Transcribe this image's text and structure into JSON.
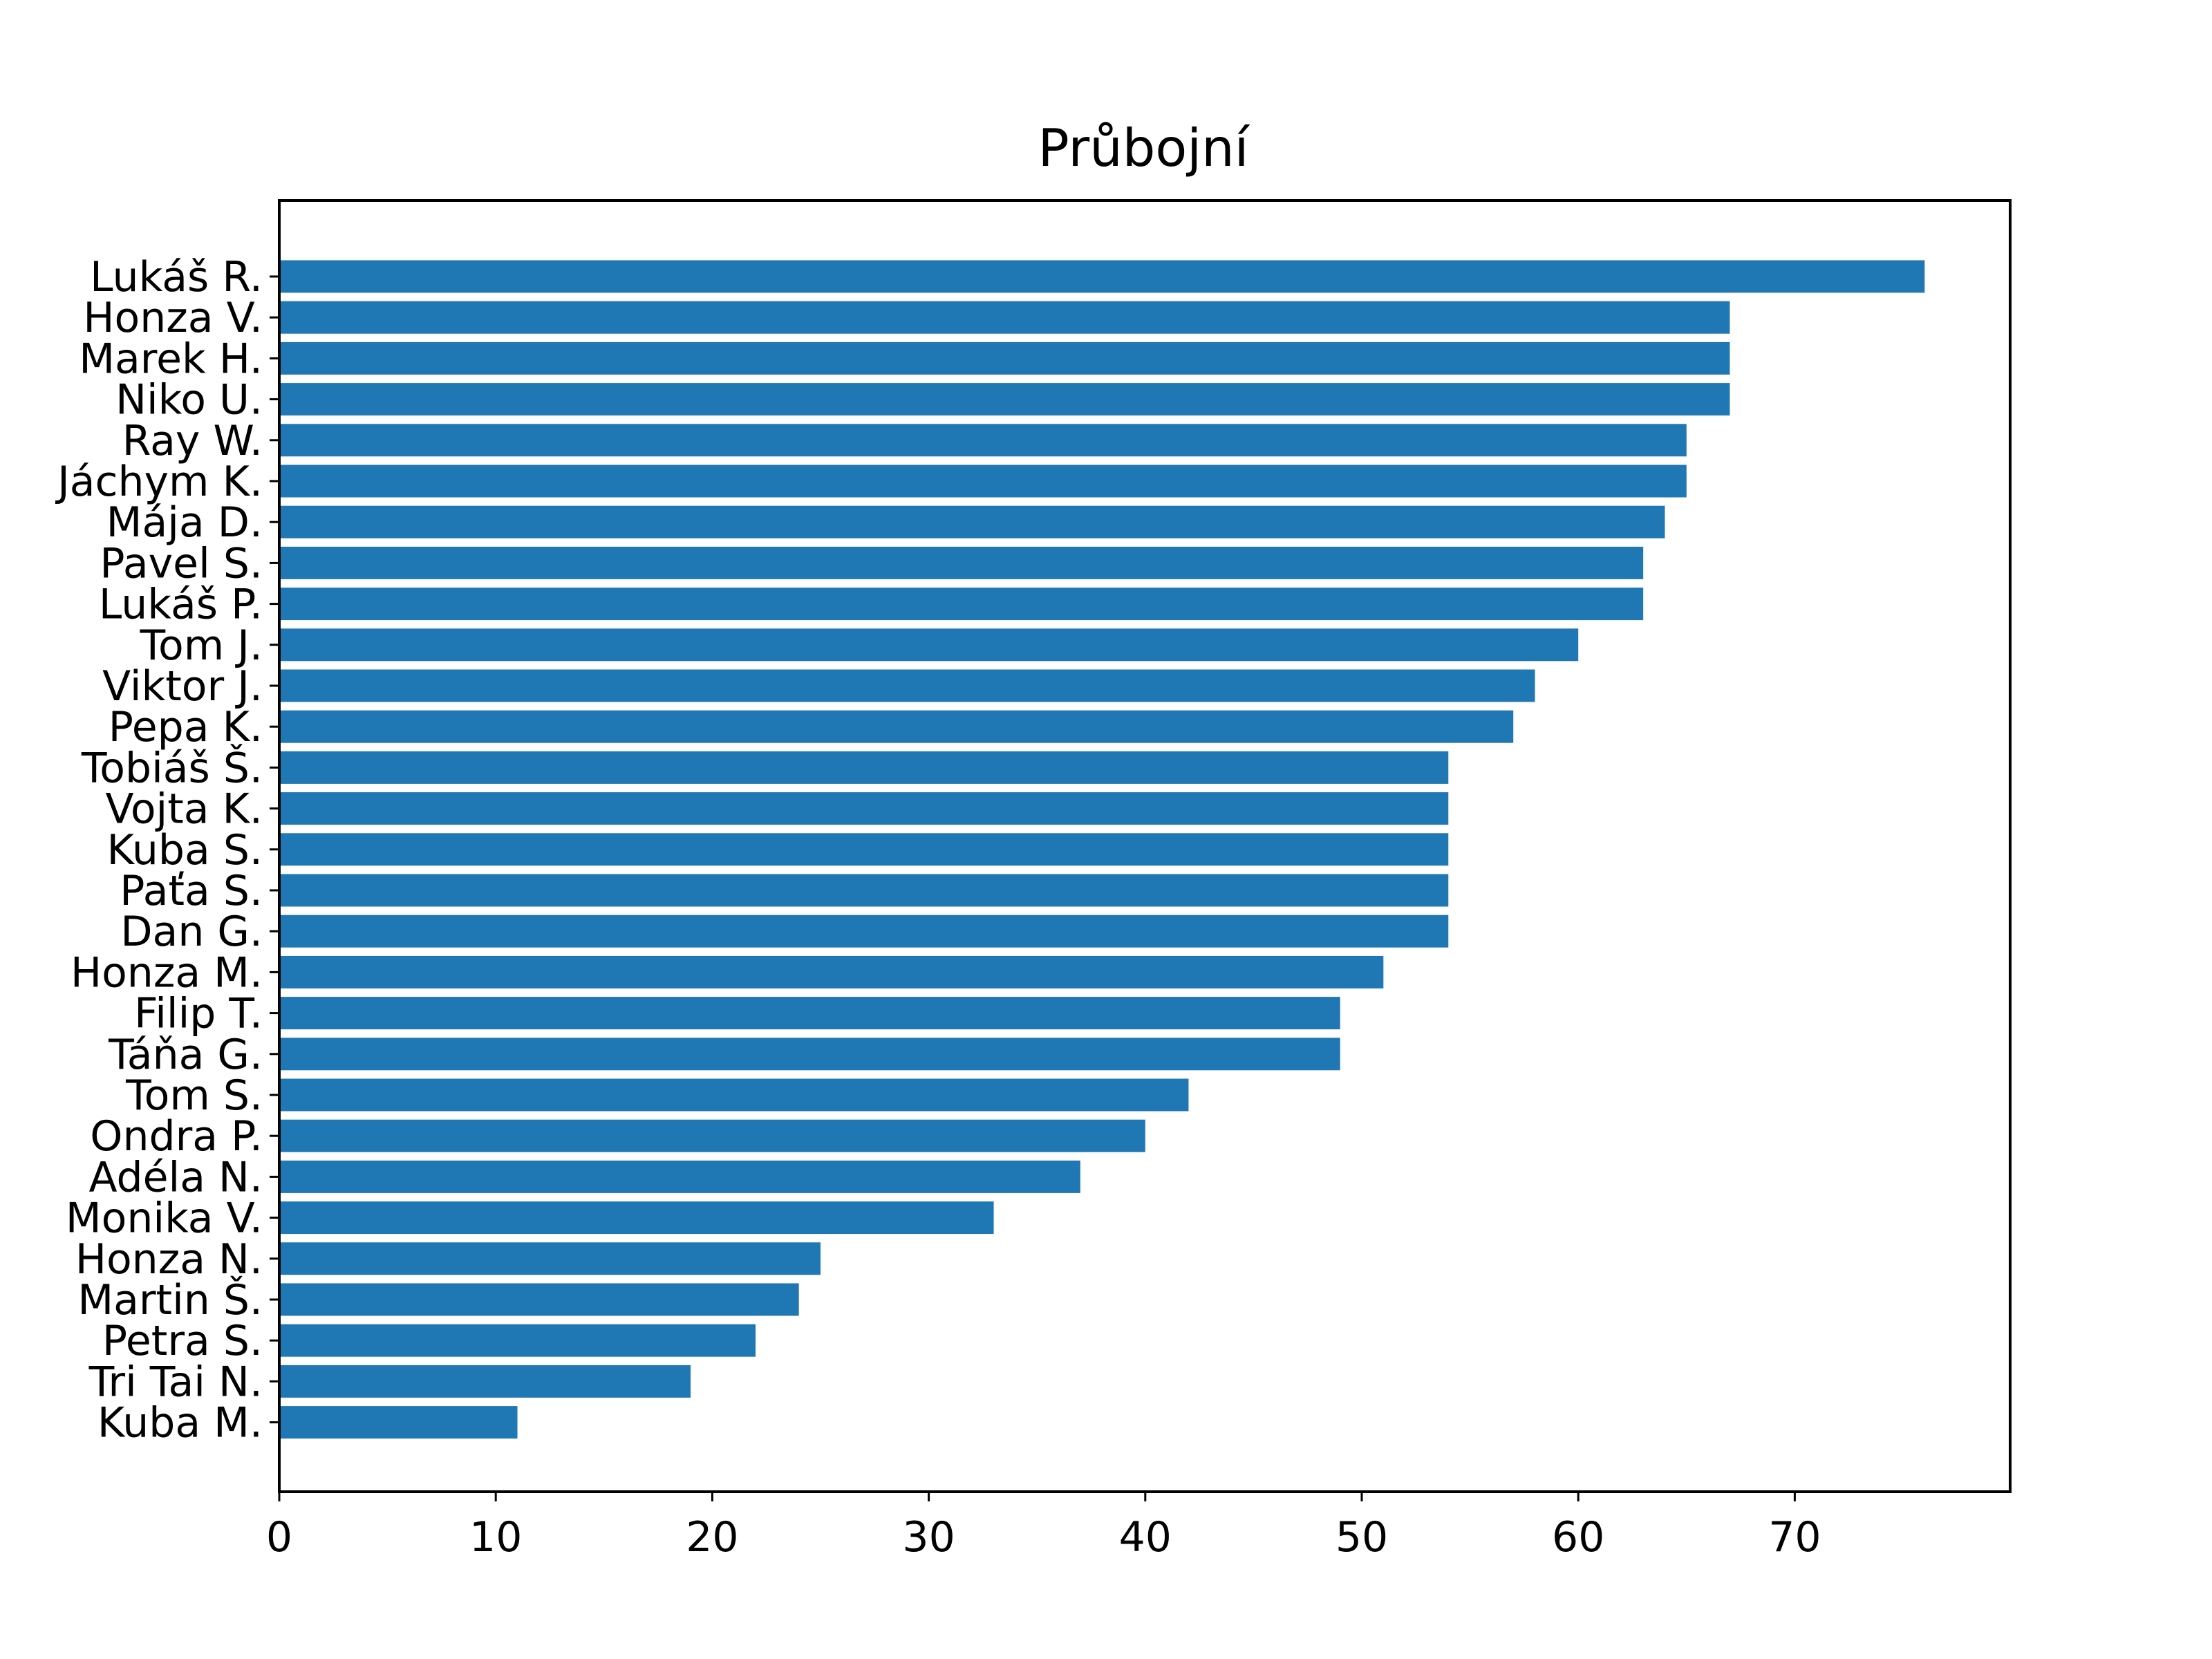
{
  "chart_data": {
    "type": "bar",
    "orientation": "horizontal",
    "title": "Průbojní",
    "xlabel": "",
    "ylabel": "",
    "xlim": [
      0,
      80
    ],
    "xticks": [
      0,
      10,
      20,
      30,
      40,
      50,
      60,
      70
    ],
    "grid": false,
    "legend": "none",
    "bar_color": "#1f77b4",
    "categories": [
      "Lukáš R.",
      "Honza V.",
      "Marek H.",
      "Niko U.",
      "Ray W.",
      "Jáchym K.",
      "Mája D.",
      "Pavel S.",
      "Lukáš P.",
      "Tom J.",
      "Viktor J.",
      "Pepa K.",
      "Tobiáš Š.",
      "Vojta K.",
      "Kuba S.",
      "Paťa S.",
      "Dan G.",
      "Honza M.",
      "Filip T.",
      "Táňa G.",
      "Tom S.",
      "Ondra P.",
      "Adéla N.",
      "Monika V.",
      "Honza N.",
      "Martin Š.",
      "Petra S.",
      "Tri Tai N.",
      "Kuba M."
    ],
    "values": [
      76,
      67,
      67,
      67,
      65,
      65,
      64,
      63,
      63,
      60,
      58,
      57,
      54,
      54,
      54,
      54,
      54,
      51,
      49,
      49,
      42,
      40,
      37,
      33,
      25,
      24,
      22,
      19,
      11
    ]
  }
}
